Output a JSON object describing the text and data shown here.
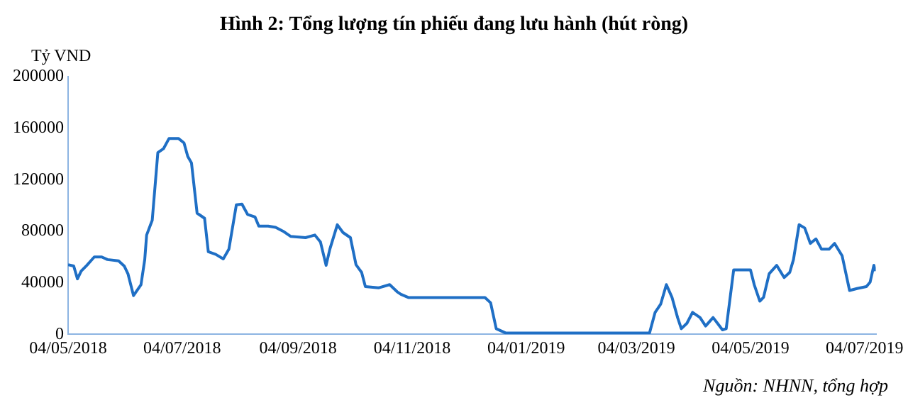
{
  "chart_data": {
    "type": "line",
    "title": "Hình 2: Tổng lượng tín phiếu đang lưu hành (hút ròng)",
    "ylabel": "Tỷ VND",
    "annotations": [
      "Nguồn: NHNN, tổng hợp"
    ],
    "x": [
      "2018-05-04",
      "2018-05-07",
      "2018-05-09",
      "2018-05-11",
      "2018-05-14",
      "2018-05-18",
      "2018-05-22",
      "2018-05-25",
      "2018-05-31",
      "2018-06-03",
      "2018-06-05",
      "2018-06-08",
      "2018-06-12",
      "2018-06-14",
      "2018-06-15",
      "2018-06-18",
      "2018-06-21",
      "2018-06-24",
      "2018-06-27",
      "2018-07-02",
      "2018-07-05",
      "2018-07-07",
      "2018-07-09",
      "2018-07-12",
      "2018-07-16",
      "2018-07-18",
      "2018-07-22",
      "2018-07-26",
      "2018-07-29",
      "2018-08-02",
      "2018-08-05",
      "2018-08-08",
      "2018-08-12",
      "2018-08-14",
      "2018-08-19",
      "2018-08-23",
      "2018-08-27",
      "2018-08-31",
      "2018-09-08",
      "2018-09-13",
      "2018-09-16",
      "2018-09-19",
      "2018-09-21",
      "2018-09-25",
      "2018-09-28",
      "2018-10-02",
      "2018-10-05",
      "2018-10-08",
      "2018-10-10",
      "2018-10-17",
      "2018-10-23",
      "2018-10-27",
      "2018-10-29",
      "2018-11-02",
      "2018-12-01",
      "2018-12-13",
      "2018-12-16",
      "2018-12-19",
      "2018-12-24",
      "2019-03-11",
      "2019-03-14",
      "2019-03-17",
      "2019-03-20",
      "2019-03-23",
      "2019-03-26",
      "2019-03-28",
      "2019-03-31",
      "2019-04-03",
      "2019-04-07",
      "2019-04-10",
      "2019-04-14",
      "2019-04-17",
      "2019-04-19",
      "2019-04-21",
      "2019-04-25",
      "2019-05-04",
      "2019-05-06",
      "2019-05-09",
      "2019-05-11",
      "2019-05-14",
      "2019-05-18",
      "2019-05-22",
      "2019-05-25",
      "2019-05-27",
      "2019-05-30",
      "2019-06-02",
      "2019-06-05",
      "2019-06-08",
      "2019-06-11",
      "2019-06-15",
      "2019-06-18",
      "2019-06-22",
      "2019-06-26",
      "2019-06-30",
      "2019-07-05",
      "2019-07-07",
      "2019-07-09",
      "2019-07-10"
    ],
    "series": [
      {
        "color": "#1f6fc5",
        "values": [
          54000,
          53000,
          43000,
          49000,
          53500,
          60000,
          60000,
          58000,
          57000,
          53000,
          47000,
          30000,
          38500,
          58000,
          77000,
          88500,
          141000,
          144000,
          152000,
          152000,
          148500,
          138000,
          133000,
          94000,
          90000,
          64000,
          62000,
          58500,
          66000,
          100500,
          101000,
          93000,
          91000,
          84000,
          84000,
          83000,
          80000,
          76000,
          75000,
          77000,
          71500,
          53500,
          66000,
          85000,
          79000,
          75000,
          54000,
          48000,
          37000,
          36000,
          38500,
          33000,
          31000,
          28500,
          28500,
          28500,
          24400,
          4300,
          1000,
          1000,
          17000,
          23500,
          38500,
          28700,
          13000,
          4300,
          8500,
          17000,
          13000,
          6400,
          13000,
          7300,
          3400,
          4300,
          50000,
          50000,
          38500,
          25700,
          28700,
          47000,
          53500,
          44000,
          48000,
          58000,
          85000,
          82500,
          70500,
          74000,
          66000,
          66000,
          70500,
          61000,
          34000,
          35500,
          37000,
          40500,
          53500,
          49000
        ]
      }
    ],
    "xlim": [
      "2018-05-04",
      "2019-07-10"
    ],
    "xticks": [
      {
        "value": "2018-05-04",
        "label": "04/05/2018"
      },
      {
        "value": "2018-07-04",
        "label": "04/07/2018"
      },
      {
        "value": "2018-09-04",
        "label": "04/09/2018"
      },
      {
        "value": "2018-11-04",
        "label": "04/11/2018"
      },
      {
        "value": "2019-01-04",
        "label": "04/01/2019"
      },
      {
        "value": "2019-03-04",
        "label": "04/03/2019"
      },
      {
        "value": "2019-05-04",
        "label": "04/05/2019"
      },
      {
        "value": "2019-07-04",
        "label": "04/07/2019"
      }
    ],
    "ylim": [
      0,
      200000
    ],
    "yticks": [
      0,
      40000,
      80000,
      120000,
      160000,
      200000
    ],
    "grid": false,
    "legend": false,
    "marker": "none",
    "line_style": "solid"
  }
}
